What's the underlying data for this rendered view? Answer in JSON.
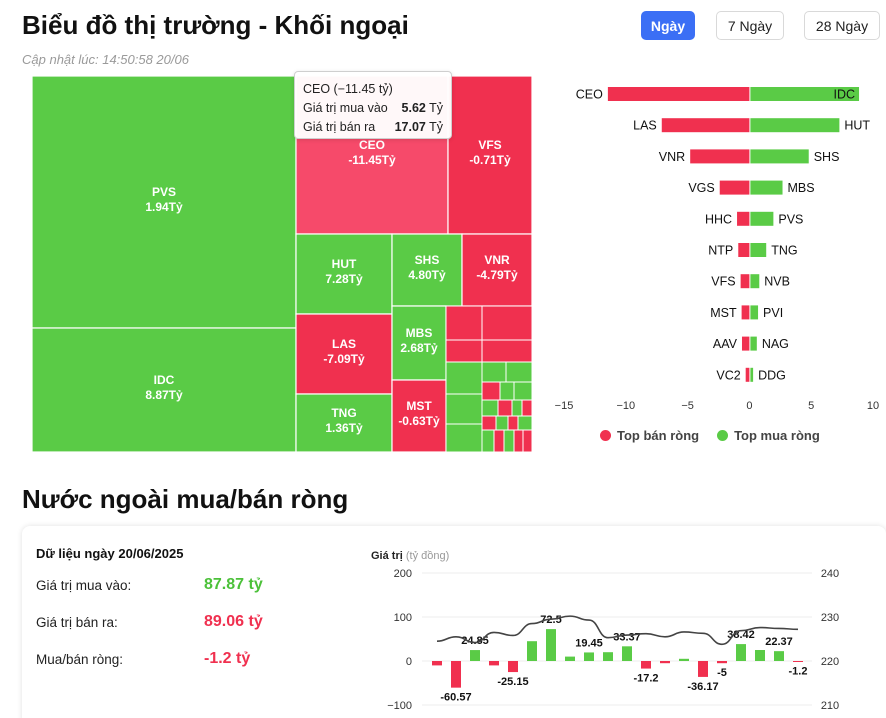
{
  "page": {
    "title": "Biểu đồ thị trường - Khối ngoại",
    "updated": "Cập nhật lúc: 14:50:58 20/06"
  },
  "tabs": [
    {
      "label": "Ngày",
      "active": true
    },
    {
      "label": "7 Ngày",
      "active": false
    },
    {
      "label": "28 Ngày",
      "active": false
    }
  ],
  "colors": {
    "green": "#5acb46",
    "red": "#f0304f",
    "hover_red": "#f64a6a",
    "line": "#444444"
  },
  "treemap": {
    "cells": [
      {
        "code": "PVS",
        "value": "1.94Tỷ",
        "sign": "buy"
      },
      {
        "code": "IDC",
        "value": "8.87Tỷ",
        "sign": "buy"
      },
      {
        "code": "CEO",
        "value": "-11.45Tỷ",
        "sign": "sell",
        "hover": true
      },
      {
        "code": "VFS",
        "value": "-0.71Tỷ",
        "sign": "sell"
      },
      {
        "code": "HUT",
        "value": "7.28Tỷ",
        "sign": "buy"
      },
      {
        "code": "SHS",
        "value": "4.80Tỷ",
        "sign": "buy"
      },
      {
        "code": "VNR",
        "value": "-4.79Tỷ",
        "sign": "sell"
      },
      {
        "code": "LAS",
        "value": "-7.09Tỷ",
        "sign": "sell"
      },
      {
        "code": "MBS",
        "value": "2.68Tỷ",
        "sign": "buy"
      },
      {
        "code": "TNG",
        "value": "1.36Tỷ",
        "sign": "buy"
      },
      {
        "code": "MST",
        "value": "-0.63Tỷ",
        "sign": "sell"
      }
    ]
  },
  "tooltip": {
    "title": "CEO (−11.45 tỷ)",
    "buy_label": "Giá trị mua vào",
    "buy_value": "5.62",
    "buy_unit": "Tỷ",
    "sell_label": "Giá trị bán ra",
    "sell_value": "17.07",
    "sell_unit": "Tỷ"
  },
  "chart_data": [
    {
      "type": "bar",
      "orientation": "horizontal-diverging",
      "rows": [
        {
          "sell": "CEO",
          "sell_value": -11.45,
          "buy": "IDC",
          "buy_value": 8.87
        },
        {
          "sell": "LAS",
          "sell_value": -7.09,
          "buy": "HUT",
          "buy_value": 7.28
        },
        {
          "sell": "VNR",
          "sell_value": -4.79,
          "buy": "SHS",
          "buy_value": 4.8
        },
        {
          "sell": "VGS",
          "sell_value": -2.4,
          "buy": "MBS",
          "buy_value": 2.68
        },
        {
          "sell": "HHC",
          "sell_value": -1.0,
          "buy": "PVS",
          "buy_value": 1.94
        },
        {
          "sell": "NTP",
          "sell_value": -0.9,
          "buy": "TNG",
          "buy_value": 1.36
        },
        {
          "sell": "VFS",
          "sell_value": -0.71,
          "buy": "NVB",
          "buy_value": 0.8
        },
        {
          "sell": "MST",
          "sell_value": -0.63,
          "buy": "PVI",
          "buy_value": 0.7
        },
        {
          "sell": "AAV",
          "sell_value": -0.6,
          "buy": "NAG",
          "buy_value": 0.6
        },
        {
          "sell": "VC2",
          "sell_value": -0.3,
          "buy": "DDG",
          "buy_value": 0.3
        }
      ],
      "xlim": [
        -15,
        10
      ],
      "xticks": [
        "−15",
        "−10",
        "−5",
        "0",
        "5",
        "10"
      ],
      "legend": [
        {
          "label": "Top bán ròng",
          "color": "#f0304f"
        },
        {
          "label": "Top mua ròng",
          "color": "#5acb46"
        }
      ],
      "legend_position": "bottom"
    },
    {
      "type": "bar",
      "ylabel": "Giá trị",
      "ylabel_unit": "(tỷ đồng)",
      "ylim": [
        -100,
        200
      ],
      "yticks": [
        "200",
        "100",
        "0",
        "−100"
      ],
      "y2lim": [
        210,
        240
      ],
      "y2ticks": [
        "240",
        "230",
        "220",
        "210"
      ],
      "values": [
        -10,
        -60.57,
        24.85,
        -10,
        -25.15,
        45,
        72.5,
        10,
        19.45,
        20,
        33.37,
        -17.2,
        -5,
        5,
        -36.17,
        -5,
        38.42,
        25,
        22.37,
        -1.2
      ],
      "labels": [
        "",
        "-60.57",
        "24.85",
        "",
        "-25.15",
        "",
        "72.5",
        "",
        "19.45",
        "",
        "33.37",
        "-17.2",
        "",
        "",
        "-36.17",
        "-5",
        "38.42",
        "",
        "22.37",
        "-1.2"
      ],
      "line": [
        224.5,
        225.5,
        224.2,
        226.5,
        225.8,
        228.5,
        229.5,
        230.2,
        229.3,
        225.3,
        225.9,
        226.2,
        225.5,
        226.6,
        226.3,
        223.8,
        226.9,
        227.6,
        227.4,
        227.2
      ]
    }
  ],
  "net_flow": {
    "section_title": "Nước ngoài mua/bán ròng",
    "date_title": "Dữ liệu ngày 20/06/2025",
    "buy_label": "Giá trị mua vào:",
    "buy_value": "87.87 tỷ",
    "sell_label": "Giá trị bán ra:",
    "sell_value": "89.06 tỷ",
    "net_label": "Mua/bán ròng:",
    "net_value": "-1.2 tỷ"
  }
}
